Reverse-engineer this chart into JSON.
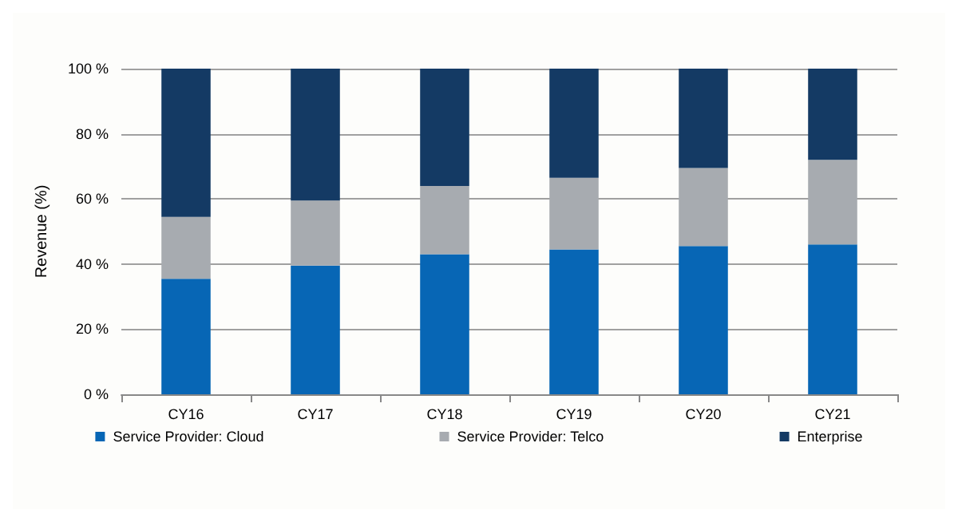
{
  "chart_data": {
    "type": "bar",
    "stacked": true,
    "ylabel": "Revenue (%)",
    "categories": [
      "CY16",
      "CY17",
      "CY18",
      "CY19",
      "CY20",
      "CY21"
    ],
    "series": [
      {
        "name": "Service Provider: Cloud",
        "color": "#0766b5",
        "values": [
          35.5,
          39.5,
          43,
          44.5,
          45.5,
          46
        ]
      },
      {
        "name": "Service Provider: Telco",
        "color": "#a7abb0",
        "values": [
          19,
          20,
          21,
          22,
          24,
          26
        ]
      },
      {
        "name": "Enterprise",
        "color": "#143a64",
        "values": [
          45.5,
          40.5,
          36,
          33.5,
          30.5,
          28
        ]
      }
    ],
    "ylim": [
      0,
      100
    ],
    "yticks": [
      {
        "value": 0,
        "label": "0 %"
      },
      {
        "value": 20,
        "label": "20 %"
      },
      {
        "value": 40,
        "label": "40 %"
      },
      {
        "value": 60,
        "label": "60 %"
      },
      {
        "value": 80,
        "label": "80 %"
      },
      {
        "value": 100,
        "label": "100 %"
      }
    ],
    "grid": "y",
    "legend": "bottom"
  }
}
